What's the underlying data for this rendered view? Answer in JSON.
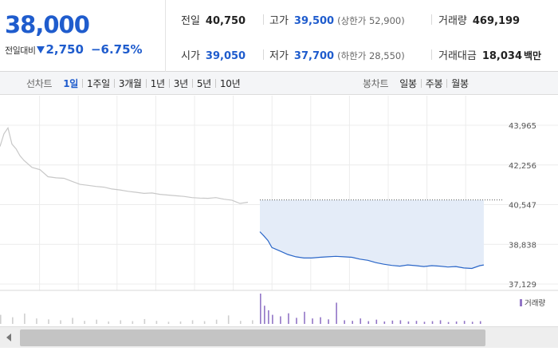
{
  "quote": {
    "price": "38,000",
    "diff_label": "전일대비",
    "diff_value": "2,750",
    "diff_pct": "−6.75%",
    "direction": "down",
    "prev_close_label": "전일",
    "prev_close": "40,750",
    "high_label": "고가",
    "high": "39,500",
    "upper_limit": "(상한가 52,900)",
    "volume_label": "거래량",
    "volume": "469,199",
    "open_label": "시가",
    "open": "39,050",
    "low_label": "저가",
    "low": "37,700",
    "lower_limit": "(하한가 28,550)",
    "amount_label": "거래대금",
    "amount": "18,034",
    "amount_unit": "백만"
  },
  "line_tabs": {
    "title": "선차트",
    "items": [
      "1일",
      "1주일",
      "3개월",
      "1년",
      "3년",
      "5년",
      "10년"
    ],
    "active": 0
  },
  "candle_tabs": {
    "title": "봉차트",
    "items": [
      "일봉",
      "주봉",
      "월봉"
    ]
  },
  "colors": {
    "accent": "#1f5ccd",
    "down": "#1f5ccd",
    "today_line": "#2a66c8",
    "prev_line": "#c8c8c8",
    "fill": "#e4ecf8",
    "volume": "#9275c6"
  },
  "chart_data": {
    "type": "line",
    "title": "",
    "xlabel": "",
    "ylabel": "",
    "y_ticks": [
      "43,965",
      "42,256",
      "40,547",
      "38,838",
      "37,129"
    ],
    "ylim": [
      37129,
      43965
    ],
    "reference_price": 40750,
    "legend": "거래량",
    "legend_position": "top-right",
    "grid": true,
    "series": [
      {
        "role": "previous-day",
        "x": [
          0,
          1,
          2,
          3,
          4,
          5,
          6,
          8,
          10,
          12,
          14,
          16,
          18,
          20,
          22,
          24,
          26,
          28,
          30,
          32,
          34,
          36,
          38,
          40,
          42,
          44,
          46,
          48,
          50,
          52,
          54,
          56,
          58,
          60,
          62
        ],
        "values": [
          43050,
          43600,
          43850,
          43150,
          42950,
          42650,
          42450,
          42150,
          42050,
          41750,
          41700,
          41680,
          41550,
          41420,
          41380,
          41330,
          41300,
          41220,
          41180,
          41120,
          41080,
          41030,
          41050,
          40990,
          40960,
          40930,
          40900,
          40850,
          40830,
          40820,
          40850,
          40780,
          40740,
          40600,
          40650
        ]
      },
      {
        "role": "today",
        "x": [
          65,
          66,
          67,
          68,
          70,
          72,
          74,
          76,
          78,
          80,
          82,
          84,
          86,
          88,
          90,
          92,
          94,
          96,
          98,
          100,
          102,
          104,
          106,
          108,
          110,
          112,
          114,
          116,
          118,
          120,
          121
        ],
        "values": [
          39380,
          39200,
          39000,
          38700,
          38550,
          38400,
          38300,
          38250,
          38250,
          38280,
          38300,
          38320,
          38300,
          38280,
          38200,
          38150,
          38050,
          37980,
          37930,
          37900,
          37950,
          37920,
          37880,
          37920,
          37900,
          37860,
          37880,
          37820,
          37800,
          37920,
          37950
        ]
      }
    ],
    "volume": {
      "x": [
        0,
        3,
        6,
        9,
        12,
        15,
        18,
        21,
        24,
        27,
        30,
        33,
        36,
        39,
        42,
        45,
        48,
        51,
        54,
        57,
        60,
        63,
        65,
        66,
        67,
        68,
        70,
        72,
        74,
        76,
        78,
        80,
        82,
        84,
        86,
        88,
        90,
        92,
        94,
        96,
        98,
        100,
        102,
        104,
        106,
        108,
        110,
        112,
        114,
        116,
        118,
        120
      ],
      "values": [
        30,
        22,
        34,
        18,
        15,
        12,
        20,
        10,
        14,
        8,
        12,
        9,
        16,
        10,
        7,
        8,
        12,
        9,
        14,
        28,
        10,
        12,
        100,
        60,
        45,
        30,
        25,
        35,
        20,
        40,
        18,
        22,
        15,
        70,
        12,
        10,
        18,
        9,
        14,
        8,
        11,
        12,
        8,
        10,
        7,
        9,
        12,
        6,
        8,
        10,
        7,
        9
      ]
    }
  }
}
